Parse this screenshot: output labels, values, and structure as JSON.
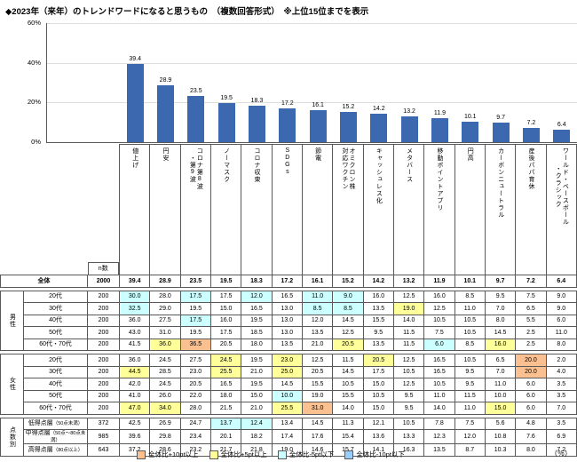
{
  "title": "◆2023年（来年）のトレンドワードになると思うもの　（複数回答形式）　※上位15位までを表示",
  "chart_data": {
    "type": "bar",
    "title": "2023年（来年）のトレンドワードになると思うもの（複数回答形式）上位15位",
    "categories": [
      "値上げ",
      "円安",
      "コロナ第8波\n・第9波",
      "ノーマスク",
      "コロナ収束",
      "SDGs",
      "節電",
      "オミクロン株\n対応ワクチン",
      "キャッシュレス化",
      "メタバース",
      "移動ポイントアプリ",
      "円高",
      "カーボンニュートラル",
      "産後パパ育休",
      "ワールド・ベースボール\n・クラシック"
    ],
    "values": [
      39.4,
      28.9,
      23.5,
      19.5,
      18.3,
      17.2,
      16.1,
      15.2,
      14.2,
      13.2,
      11.9,
      10.1,
      9.7,
      7.2,
      6.4
    ],
    "xlabel": "",
    "ylabel": "%",
    "ylim": [
      0,
      60
    ],
    "ytick_labels": [
      "60%",
      "40%",
      "20%",
      "0%"
    ],
    "grid": true,
    "legend_position": "none",
    "bar_color": "#3C68B0"
  },
  "table": {
    "n_header": "n数",
    "unit_label": "（％）",
    "overall": {
      "label": "全体",
      "n": 2000,
      "values": [
        39.4,
        28.9,
        23.5,
        19.5,
        18.3,
        17.2,
        16.1,
        15.2,
        14.2,
        13.2,
        11.9,
        10.1,
        9.7,
        7.2,
        6.4
      ]
    },
    "groups": [
      {
        "name": "男性",
        "rows": [
          {
            "label": "20代",
            "n": 200,
            "values": [
              30.0,
              28.0,
              17.5,
              17.5,
              12.0,
              16.5,
              11.0,
              9.0,
              16.0,
              12.5,
              16.0,
              8.5,
              9.5,
              7.5,
              9.0
            ]
          },
          {
            "label": "30代",
            "n": 200,
            "values": [
              32.5,
              29.0,
              19.5,
              15.0,
              16.5,
              13.0,
              8.5,
              8.5,
              13.5,
              19.0,
              12.5,
              11.0,
              7.0,
              6.5,
              9.0
            ]
          },
          {
            "label": "40代",
            "n": 200,
            "values": [
              36.0,
              27.5,
              17.5,
              16.0,
              19.5,
              13.0,
              12.0,
              14.5,
              15.5,
              14.0,
              10.5,
              10.5,
              8.0,
              5.5,
              6.0
            ]
          },
          {
            "label": "50代",
            "n": 200,
            "values": [
              43.0,
              31.0,
              19.5,
              17.5,
              18.5,
              13.0,
              13.5,
              12.5,
              9.5,
              11.5,
              7.5,
              10.5,
              14.5,
              2.5,
              11.0
            ]
          },
          {
            "label": "60代・70代",
            "n": 200,
            "values": [
              41.5,
              36.0,
              36.5,
              20.5,
              18.0,
              13.5,
              21.0,
              20.5,
              13.5,
              11.5,
              6.0,
              8.5,
              16.0,
              2.5,
              8.0
            ]
          }
        ]
      },
      {
        "name": "女性",
        "rows": [
          {
            "label": "20代",
            "n": 200,
            "values": [
              36.0,
              24.5,
              27.5,
              24.5,
              19.5,
              23.0,
              12.5,
              11.5,
              20.5,
              12.5,
              16.5,
              10.5,
              6.5,
              20.0,
              2.0
            ]
          },
          {
            "label": "30代",
            "n": 200,
            "values": [
              44.5,
              28.5,
              23.0,
              25.5,
              21.0,
              25.0,
              20.5,
              14.5,
              17.5,
              10.5,
              16.5,
              9.5,
              7.0,
              20.0,
              4.0
            ]
          },
          {
            "label": "40代",
            "n": 200,
            "values": [
              42.0,
              24.5,
              20.5,
              16.5,
              19.5,
              14.5,
              15.5,
              10.5,
              15.0,
              12.5,
              10.5,
              9.5,
              11.0,
              6.0,
              3.5
            ]
          },
          {
            "label": "50代",
            "n": 200,
            "values": [
              41.0,
              26.0,
              22.0,
              18.0,
              15.0,
              10.0,
              19.0,
              15.5,
              10.5,
              9.5,
              11.0,
              11.5,
              10.0,
              6.0,
              3.5
            ]
          },
          {
            "label": "60代・70代",
            "n": 200,
            "values": [
              47.0,
              34.0,
              28.0,
              21.5,
              21.0,
              25.5,
              31.0,
              14.0,
              15.0,
              9.5,
              14.0,
              11.0,
              15.0,
              6.0,
              7.0
            ]
          }
        ]
      },
      {
        "name": "点数別",
        "rows": [
          {
            "label": "低得点層",
            "sub": "（50点未満）",
            "n": 372,
            "values": [
              42.5,
              26.9,
              24.7,
              13.7,
              12.4,
              13.4,
              14.5,
              11.3,
              12.1,
              10.5,
              7.8,
              7.5,
              5.6,
              4.8,
              3.5
            ]
          },
          {
            "label": "中得点層",
            "sub": "（50点～80点未満）",
            "n": 985,
            "values": [
              39.6,
              29.8,
              23.4,
              20.1,
              18.2,
              17.4,
              17.6,
              15.4,
              13.6,
              13.3,
              12.3,
              12.0,
              10.8,
              7.6,
              6.9
            ]
          },
          {
            "label": "高得点層",
            "sub": "（80点以上）",
            "n": 643,
            "values": [
              37.2,
              28.6,
              23.2,
              21.7,
              21.8,
              19.0,
              14.6,
              15.7,
              14.1,
              16.3,
              13.5,
              8.7,
              10.3,
              8.0,
              7.2
            ]
          }
        ]
      }
    ]
  },
  "legend": {
    "items": [
      {
        "label": "全体比+10pt以上",
        "color": "#FAC090",
        "rule": "diff >= 10"
      },
      {
        "label": "全体比+5pt以上",
        "color": "#FFFF99",
        "rule": "diff >= 5"
      },
      {
        "label": "全体比-5pt以下",
        "color": "#CCFFFF",
        "rule": "diff <= -5"
      },
      {
        "label": "全体比-10pt以下",
        "color": "#99CCFF",
        "rule": "diff <= -10"
      }
    ]
  }
}
